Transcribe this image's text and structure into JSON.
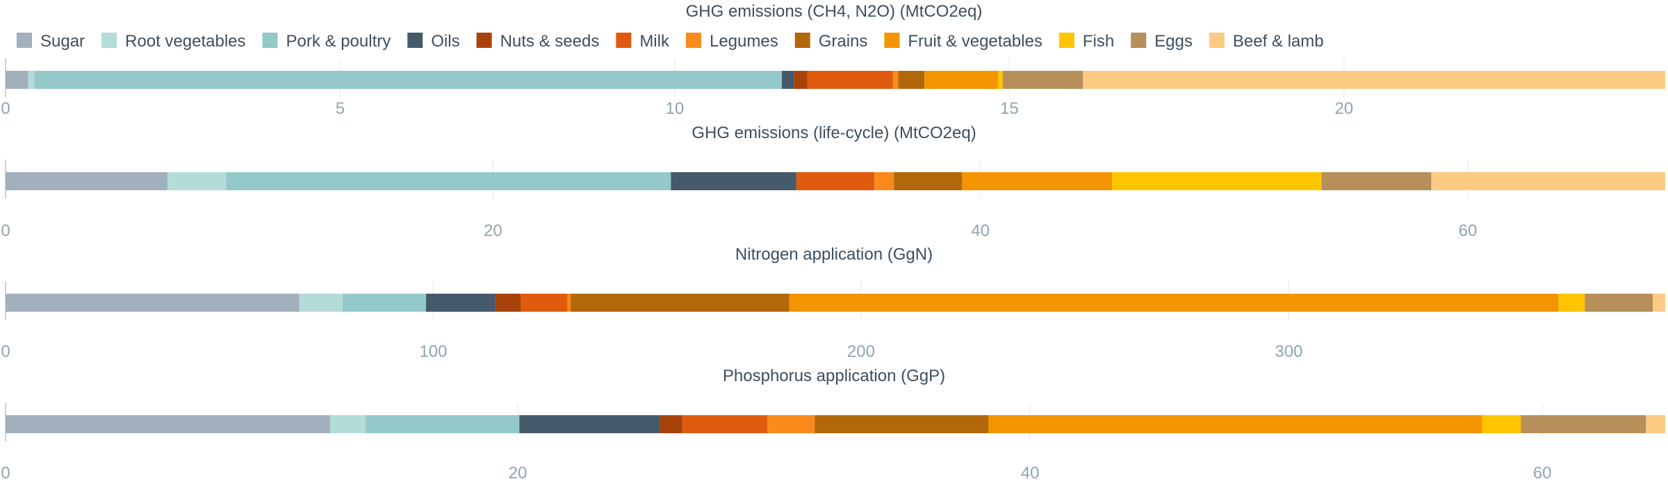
{
  "colors": {
    "Sugar": "#a2afbc",
    "Root vegetables": "#b3dcd9",
    "Pork & poultry": "#93c9c8",
    "Oils": "#455a6b",
    "Nuts & seeds": "#a8420b",
    "Milk": "#e05b0e",
    "Legumes": "#f98a1b",
    "Grains": "#b2680a",
    "Fruit & vegetables": "#f49400",
    "Fish": "#ffc600",
    "Eggs": "#b68f5a",
    "Beef & lamb": "#fdca83"
  },
  "chart_data": {
    "type": "bar",
    "orientation": "horizontal",
    "stacked": true,
    "legend_position": "top",
    "grid": true,
    "legend": [
      "Sugar",
      "Root vegetables",
      "Pork & poultry",
      "Oils",
      "Nuts & seeds",
      "Milk",
      "Legumes",
      "Grains",
      "Fruit & vegetables",
      "Fish",
      "Eggs",
      "Beef & lamb"
    ],
    "panels": [
      {
        "title": "GHG emissions (CH4, N2O) (MtCO2eq)",
        "xlim": [
          0,
          24.8
        ],
        "ticks": [
          0,
          5,
          10,
          15,
          20
        ],
        "tick_labels": [
          "0",
          "5",
          "10",
          "15",
          "20"
        ],
        "segments": [
          {
            "name": "Sugar",
            "value": 0.34
          },
          {
            "name": "Root vegetables",
            "value": 0.09
          },
          {
            "name": "Pork & poultry",
            "value": 11.17
          },
          {
            "name": "Oils",
            "value": 0.18
          },
          {
            "name": "Nuts & seeds",
            "value": 0.2
          },
          {
            "name": "Milk",
            "value": 1.28
          },
          {
            "name": "Legumes",
            "value": 0.08
          },
          {
            "name": "Grains",
            "value": 0.39
          },
          {
            "name": "Fruit & vegetables",
            "value": 1.1
          },
          {
            "name": "Fish",
            "value": 0.07
          },
          {
            "name": "Eggs",
            "value": 1.2
          },
          {
            "name": "Beef & lamb",
            "value": 8.7
          }
        ]
      },
      {
        "title": "GHG emissions (life-cycle) (MtCO2eq)",
        "xlim": [
          0,
          68.1
        ],
        "ticks": [
          0,
          20,
          40,
          60
        ],
        "tick_labels": [
          "0",
          "20",
          "40",
          "60"
        ],
        "segments": [
          {
            "name": "Sugar",
            "value": 6.65
          },
          {
            "name": "Root vegetables",
            "value": 2.4
          },
          {
            "name": "Pork & poultry",
            "value": 18.25
          },
          {
            "name": "Oils",
            "value": 5.15
          },
          {
            "name": "Nuts & seeds",
            "value": 0
          },
          {
            "name": "Milk",
            "value": 3.2
          },
          {
            "name": "Legumes",
            "value": 0.8
          },
          {
            "name": "Grains",
            "value": 2.8
          },
          {
            "name": "Fruit & vegetables",
            "value": 6.15
          },
          {
            "name": "Fish",
            "value": 8.6
          },
          {
            "name": "Eggs",
            "value": 4.5
          },
          {
            "name": "Beef & lamb",
            "value": 9.6
          }
        ]
      },
      {
        "title": "Nitrogen application (GgN)",
        "xlim": [
          0,
          388
        ],
        "ticks": [
          0,
          100,
          200,
          300
        ],
        "tick_labels": [
          "0",
          "100",
          "200",
          "300"
        ],
        "segments": [
          {
            "name": "Sugar",
            "value": 68.7
          },
          {
            "name": "Root vegetables",
            "value": 10.1
          },
          {
            "name": "Pork & poultry",
            "value": 19.5
          },
          {
            "name": "Oils",
            "value": 16.3
          },
          {
            "name": "Nuts & seeds",
            "value": 5.8
          },
          {
            "name": "Milk",
            "value": 11.0
          },
          {
            "name": "Legumes",
            "value": 0.7
          },
          {
            "name": "Grains",
            "value": 51.1
          },
          {
            "name": "Fruit & vegetables",
            "value": 179.9
          },
          {
            "name": "Fish",
            "value": 6.1
          },
          {
            "name": "Eggs",
            "value": 15.9
          },
          {
            "name": "Beef & lamb",
            "value": 2.9
          }
        ]
      },
      {
        "title": "Phosphorus application (GgP)",
        "xlim": [
          0,
          64.8
        ],
        "ticks": [
          0,
          20,
          40,
          60
        ],
        "tick_labels": [
          "0",
          "20",
          "40",
          "60"
        ],
        "segments": [
          {
            "name": "Sugar",
            "value": 12.67
          },
          {
            "name": "Root vegetables",
            "value": 1.38
          },
          {
            "name": "Pork & poultry",
            "value": 6.01
          },
          {
            "name": "Oils",
            "value": 5.49
          },
          {
            "name": "Nuts & seeds",
            "value": 0.87
          },
          {
            "name": "Milk",
            "value": 3.32
          },
          {
            "name": "Legumes",
            "value": 1.85
          },
          {
            "name": "Grains",
            "value": 6.78
          },
          {
            "name": "Fruit & vegetables",
            "value": 19.28
          },
          {
            "name": "Fish",
            "value": 1.51
          },
          {
            "name": "Eggs",
            "value": 4.89
          },
          {
            "name": "Beef & lamb",
            "value": 0.75
          }
        ]
      }
    ]
  }
}
